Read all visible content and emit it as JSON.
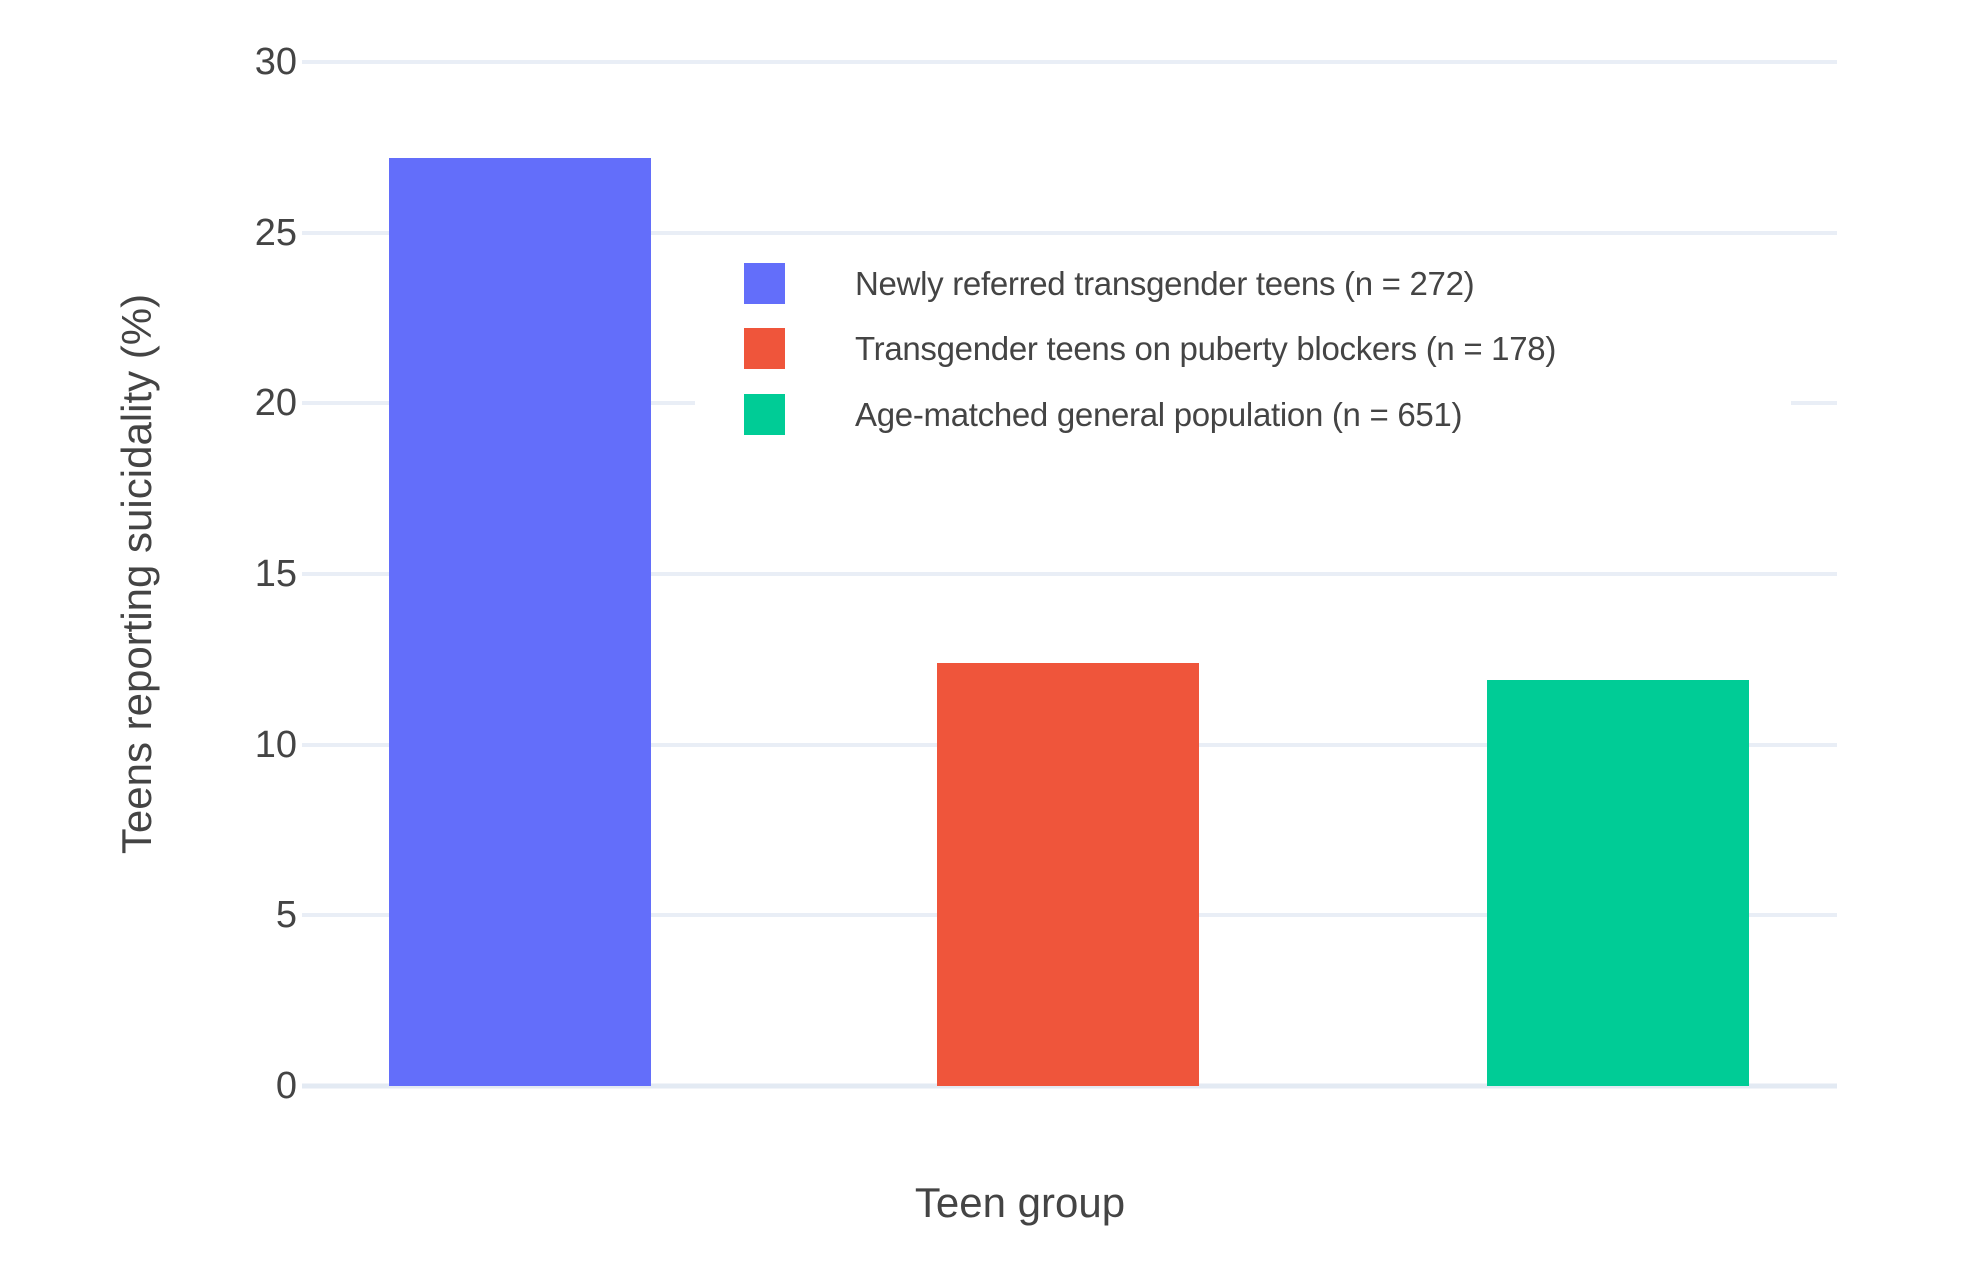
{
  "chart_data": {
    "type": "bar",
    "title": "",
    "xlabel": "Teen group",
    "ylabel": "Teens reporting suicidality (%)",
    "series": [
      {
        "name": "Newly referred transgender teens (n = 272)",
        "value": 27.2,
        "color": "#636EFA"
      },
      {
        "name": "Transgender teens on puberty blockers (n = 178)",
        "value": 12.4,
        "color": "#EF553B"
      },
      {
        "name": "Age-matched general population (n = 651)",
        "value": 11.9,
        "color": "#00CC96"
      }
    ],
    "ylim": [
      0,
      30
    ],
    "yticks": [
      0,
      5,
      10,
      15,
      20,
      25,
      30
    ],
    "grid": true,
    "legend_position": "upper-center",
    "background": "#ffffff",
    "grid_color": "#e9eef6",
    "axis_line_color": "#e3eaf3",
    "text_color": "#444444"
  }
}
